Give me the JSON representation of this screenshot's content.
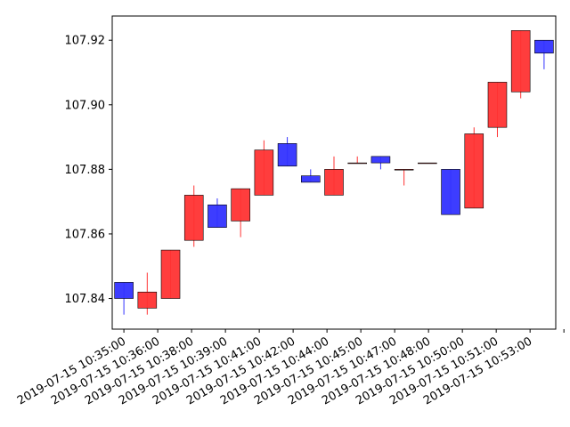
{
  "chart_data": {
    "type": "candlestick",
    "title": "",
    "xlabel": "",
    "ylabel": "",
    "ylim": [
      107.8305,
      107.9275
    ],
    "grid": false,
    "y_ticks": [
      107.84,
      107.86,
      107.88,
      107.9,
      107.92
    ],
    "y_tick_labels": [
      "107.84",
      "107.86",
      "107.88",
      "107.90",
      "107.92"
    ],
    "x_tick_labels": [
      "2019-07-15 10:35:00",
      "2019-07-15 10:36:00",
      "2019-07-15 10:38:00",
      "2019-07-15 10:39:00",
      "2019-07-15 10:41:00",
      "2019-07-15 10:42:00",
      "2019-07-15 10:44:00",
      "2019-07-15 10:45:00",
      "2019-07-15 10:47:00",
      "2019-07-15 10:48:00",
      "2019-07-15 10:50:00",
      "2019-07-15 10:51:00",
      "2019-07-15 10:53:00",
      ""
    ],
    "up_color": "#ff3333",
    "down_color": "#3333ff",
    "candles": [
      {
        "open": 107.845,
        "high": 107.845,
        "low": 107.835,
        "close": 107.84
      },
      {
        "open": 107.837,
        "high": 107.848,
        "low": 107.835,
        "close": 107.842
      },
      {
        "open": 107.84,
        "high": 107.855,
        "low": 107.84,
        "close": 107.855
      },
      {
        "open": 107.858,
        "high": 107.875,
        "low": 107.856,
        "close": 107.872
      },
      {
        "open": 107.869,
        "high": 107.871,
        "low": 107.862,
        "close": 107.862
      },
      {
        "open": 107.864,
        "high": 107.874,
        "low": 107.859,
        "close": 107.874
      },
      {
        "open": 107.872,
        "high": 107.889,
        "low": 107.872,
        "close": 107.886
      },
      {
        "open": 107.888,
        "high": 107.89,
        "low": 107.881,
        "close": 107.881
      },
      {
        "open": 107.878,
        "high": 107.88,
        "low": 107.876,
        "close": 107.876
      },
      {
        "open": 107.872,
        "high": 107.884,
        "low": 107.872,
        "close": 107.88
      },
      {
        "open": 107.882,
        "high": 107.884,
        "low": 107.882,
        "close": 107.882
      },
      {
        "open": 107.884,
        "high": 107.884,
        "low": 107.88,
        "close": 107.882
      },
      {
        "open": 107.88,
        "high": 107.88,
        "low": 107.875,
        "close": 107.88
      },
      {
        "open": 107.882,
        "high": 107.882,
        "low": 107.882,
        "close": 107.882
      },
      {
        "open": 107.88,
        "high": 107.88,
        "low": 107.866,
        "close": 107.866
      },
      {
        "open": 107.868,
        "high": 107.893,
        "low": 107.868,
        "close": 107.891
      },
      {
        "open": 107.893,
        "high": 107.907,
        "low": 107.89,
        "close": 107.907
      },
      {
        "open": 107.904,
        "high": 107.923,
        "low": 107.902,
        "close": 107.923
      },
      {
        "open": 107.92,
        "high": 107.92,
        "low": 107.911,
        "close": 107.916
      }
    ]
  }
}
